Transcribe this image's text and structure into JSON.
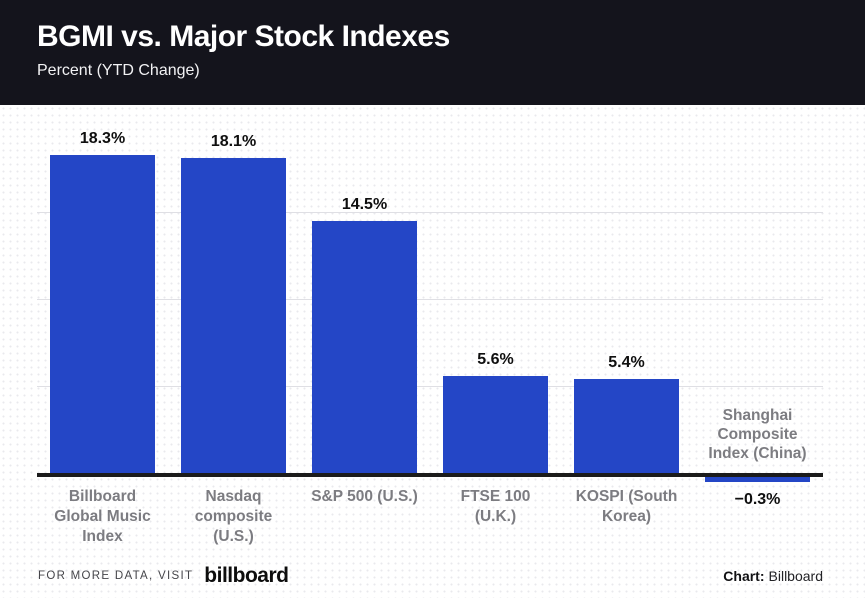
{
  "header": {
    "title": "BGMI vs. Major Stock Indexes",
    "subtitle": "Percent (YTD Change)",
    "background_color": "#14141c",
    "text_color": "#ffffff"
  },
  "chart_data": {
    "type": "bar",
    "title": "BGMI vs. Major Stock Indexes",
    "subtitle": "Percent (YTD Change)",
    "unit": "%",
    "categories": [
      "Billboard Global Music Index",
      "Nasdaq composite (U.S.)",
      "S&P 500 (U.S.)",
      "FTSE 100 (U.K.)",
      "KOSPI (South Korea)",
      "Shanghai Composite Index (China)"
    ],
    "category_lines": [
      [
        "Billboard",
        "Global Music",
        "Index"
      ],
      [
        "Nasdaq",
        "composite",
        "(U.S.)"
      ],
      [
        "S&P 500 (U.S.)"
      ],
      [
        "FTSE 100",
        "(U.K.)"
      ],
      [
        "KOSPI (South",
        "Korea)"
      ],
      [
        "Shanghai",
        "Composite",
        "Index (China)"
      ]
    ],
    "values": [
      18.3,
      18.1,
      14.5,
      5.6,
      5.4,
      -0.3
    ],
    "value_labels": [
      "18.3%",
      "18.1%",
      "14.5%",
      "5.6%",
      "5.4%",
      "−0.3%"
    ],
    "bar_color": "#2446c6",
    "axis_color": "#1b1b1b",
    "gridline_values": [
      5,
      10,
      15
    ],
    "grid_on": true,
    "ylim": [
      -1,
      21
    ],
    "xlabel": "",
    "ylabel": "",
    "legend": null
  },
  "footer": {
    "note": "FOR MORE DATA, VISIT",
    "logo": "billboard",
    "credit_label": "Chart:",
    "credit_value": "Billboard"
  }
}
